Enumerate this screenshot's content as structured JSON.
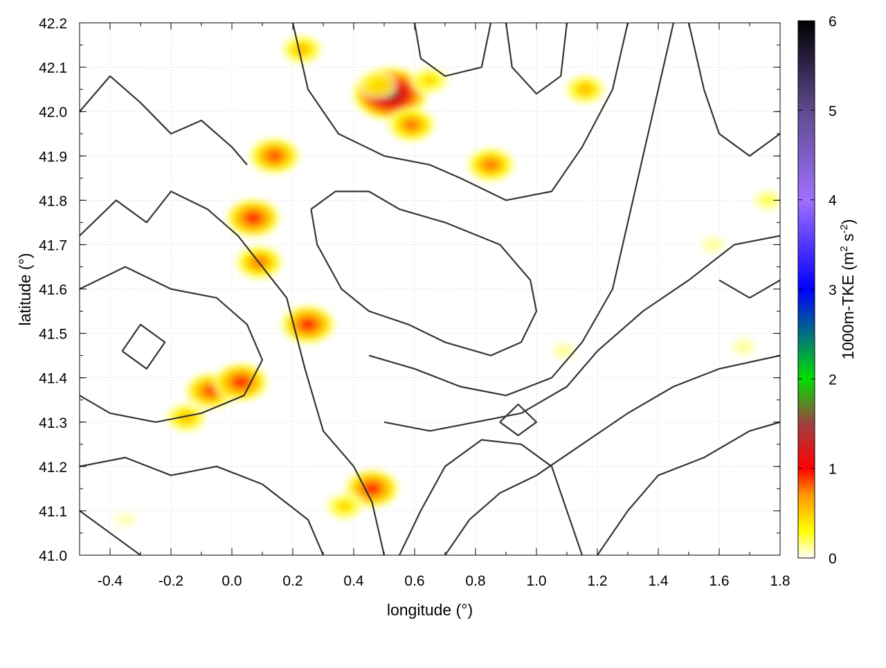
{
  "chart_data": {
    "type": "heatmap",
    "title": "",
    "xlabel": "longitude (°)",
    "ylabel": "latitude (°)",
    "xlim": [
      -0.5,
      1.8
    ],
    "ylim": [
      41.0,
      42.2
    ],
    "x_ticks": [
      {
        "value": -0.4,
        "label": "-0.4"
      },
      {
        "value": -0.2,
        "label": "-0.2"
      },
      {
        "value": 0.0,
        "label": "0.0"
      },
      {
        "value": 0.2,
        "label": "0.2"
      },
      {
        "value": 0.4,
        "label": "0.4"
      },
      {
        "value": 0.6,
        "label": "0.6"
      },
      {
        "value": 0.8,
        "label": "0.8"
      },
      {
        "value": 1.0,
        "label": "1.0"
      },
      {
        "value": 1.2,
        "label": "1.2"
      },
      {
        "value": 1.4,
        "label": "1.4"
      },
      {
        "value": 1.6,
        "label": "1.6"
      },
      {
        "value": 1.8,
        "label": "1.8"
      }
    ],
    "y_ticks": [
      {
        "value": 41.0,
        "label": "41.0"
      },
      {
        "value": 41.1,
        "label": "41.1"
      },
      {
        "value": 41.2,
        "label": "41.2"
      },
      {
        "value": 41.3,
        "label": "41.3"
      },
      {
        "value": 41.4,
        "label": "41.4"
      },
      {
        "value": 41.5,
        "label": "41.5"
      },
      {
        "value": 41.6,
        "label": "41.6"
      },
      {
        "value": 41.7,
        "label": "41.7"
      },
      {
        "value": 41.8,
        "label": "41.8"
      },
      {
        "value": 41.9,
        "label": "41.9"
      },
      {
        "value": 42.0,
        "label": "42.0"
      },
      {
        "value": 42.1,
        "label": "42.1"
      },
      {
        "value": 42.2,
        "label": "42.2"
      }
    ],
    "grid": true,
    "colorbar": {
      "label_main": "1000m-TKE (m",
      "label_sup1": "2",
      "label_mid": " s",
      "label_sup2": "-2",
      "label_end": ")",
      "range": [
        0,
        6
      ],
      "ticks": [
        {
          "value": 0,
          "label": "0"
        },
        {
          "value": 1,
          "label": "1"
        },
        {
          "value": 2,
          "label": "2"
        },
        {
          "value": 3,
          "label": "3"
        },
        {
          "value": 4,
          "label": "4"
        },
        {
          "value": 5,
          "label": "5"
        },
        {
          "value": 6,
          "label": "6"
        }
      ],
      "stops": [
        {
          "value": 0.0,
          "color": "#ffffff"
        },
        {
          "value": 0.3,
          "color": "#ffff00"
        },
        {
          "value": 0.7,
          "color": "#ff9900"
        },
        {
          "value": 1.0,
          "color": "#ff0000"
        },
        {
          "value": 1.5,
          "color": "#a04040"
        },
        {
          "value": 2.0,
          "color": "#00e000"
        },
        {
          "value": 3.0,
          "color": "#0000ff"
        },
        {
          "value": 4.0,
          "color": "#a070ff"
        },
        {
          "value": 5.0,
          "color": "#604a90"
        },
        {
          "value": 6.0,
          "color": "#000000"
        }
      ]
    },
    "tke_hotspots": [
      {
        "lon": 0.14,
        "lat": 41.9,
        "peak": 0.9
      },
      {
        "lon": 0.07,
        "lat": 41.76,
        "peak": 1.0
      },
      {
        "lon": 0.09,
        "lat": 41.66,
        "peak": 0.8
      },
      {
        "lon": 0.25,
        "lat": 41.52,
        "peak": 1.0
      },
      {
        "lon": -0.07,
        "lat": 41.37,
        "peak": 0.9
      },
      {
        "lon": 0.03,
        "lat": 41.39,
        "peak": 1.0
      },
      {
        "lon": -0.15,
        "lat": 41.31,
        "peak": 0.6
      },
      {
        "lon": 0.46,
        "lat": 41.15,
        "peak": 1.0
      },
      {
        "lon": 0.37,
        "lat": 41.11,
        "peak": 0.5
      },
      {
        "lon": 0.52,
        "lat": 42.04,
        "peak": 1.6
      },
      {
        "lon": 0.59,
        "lat": 41.97,
        "peak": 0.8
      },
      {
        "lon": 0.23,
        "lat": 42.14,
        "peak": 0.6
      },
      {
        "lon": 0.48,
        "lat": 42.06,
        "peak": 0.5
      },
      {
        "lon": 1.16,
        "lat": 42.05,
        "peak": 0.6
      },
      {
        "lon": 0.85,
        "lat": 41.88,
        "peak": 0.8
      },
      {
        "lon": 0.65,
        "lat": 42.07,
        "peak": 0.5
      },
      {
        "lon": 1.09,
        "lat": 41.46,
        "peak": 0.2
      },
      {
        "lon": 1.68,
        "lat": 41.47,
        "peak": 0.2
      },
      {
        "lon": 1.58,
        "lat": 41.7,
        "peak": 0.2
      },
      {
        "lon": 1.76,
        "lat": 41.8,
        "peak": 0.3
      },
      {
        "lon": -0.35,
        "lat": 41.08,
        "peak": 0.15
      }
    ],
    "topography_contours": [
      [
        [
          -0.5,
          42.0
        ],
        [
          -0.4,
          42.08
        ],
        [
          -0.3,
          42.02
        ],
        [
          -0.2,
          41.95
        ],
        [
          -0.1,
          41.98
        ],
        [
          0.0,
          41.92
        ],
        [
          0.05,
          41.88
        ]
      ],
      [
        [
          -0.5,
          41.72
        ],
        [
          -0.38,
          41.8
        ],
        [
          -0.28,
          41.75
        ],
        [
          -0.2,
          41.82
        ],
        [
          -0.08,
          41.78
        ],
        [
          0.02,
          41.72
        ],
        [
          0.1,
          41.65
        ],
        [
          0.18,
          41.58
        ],
        [
          0.24,
          41.42
        ],
        [
          0.3,
          41.28
        ],
        [
          0.4,
          41.2
        ],
        [
          0.46,
          41.12
        ],
        [
          0.5,
          41.0
        ]
      ],
      [
        [
          -0.5,
          41.6
        ],
        [
          -0.35,
          41.65
        ],
        [
          -0.2,
          41.6
        ],
        [
          -0.05,
          41.58
        ],
        [
          0.05,
          41.52
        ],
        [
          0.1,
          41.44
        ],
        [
          0.04,
          41.36
        ],
        [
          -0.1,
          41.32
        ],
        [
          -0.25,
          41.3
        ],
        [
          -0.4,
          41.32
        ],
        [
          -0.5,
          41.36
        ]
      ],
      [
        [
          -0.5,
          41.2
        ],
        [
          -0.35,
          41.22
        ],
        [
          -0.2,
          41.18
        ],
        [
          -0.05,
          41.2
        ],
        [
          0.1,
          41.16
        ],
        [
          0.25,
          41.08
        ],
        [
          0.3,
          41.0
        ]
      ],
      [
        [
          -0.5,
          41.1
        ],
        [
          -0.4,
          41.05
        ],
        [
          -0.3,
          41.0
        ]
      ],
      [
        [
          0.2,
          42.2
        ],
        [
          0.25,
          42.05
        ],
        [
          0.35,
          41.95
        ],
        [
          0.5,
          41.9
        ],
        [
          0.65,
          41.88
        ],
        [
          0.75,
          41.85
        ],
        [
          0.9,
          41.8
        ],
        [
          1.05,
          41.82
        ],
        [
          1.15,
          41.92
        ],
        [
          1.25,
          42.05
        ],
        [
          1.3,
          42.2
        ]
      ],
      [
        [
          0.26,
          41.78
        ],
        [
          0.34,
          41.82
        ],
        [
          0.45,
          41.82
        ],
        [
          0.55,
          41.78
        ],
        [
          0.7,
          41.75
        ],
        [
          0.88,
          41.7
        ],
        [
          0.98,
          41.62
        ],
        [
          1.0,
          41.55
        ],
        [
          0.95,
          41.48
        ],
        [
          0.85,
          41.45
        ],
        [
          0.7,
          41.48
        ],
        [
          0.58,
          41.52
        ],
        [
          0.45,
          41.55
        ],
        [
          0.36,
          41.6
        ],
        [
          0.28,
          41.7
        ],
        [
          0.26,
          41.78
        ]
      ],
      [
        [
          0.45,
          41.45
        ],
        [
          0.6,
          41.42
        ],
        [
          0.75,
          41.38
        ],
        [
          0.9,
          41.36
        ],
        [
          1.05,
          41.4
        ],
        [
          1.15,
          41.48
        ],
        [
          1.25,
          41.6
        ],
        [
          1.3,
          41.75
        ],
        [
          1.35,
          41.9
        ],
        [
          1.4,
          42.05
        ],
        [
          1.45,
          42.2
        ]
      ],
      [
        [
          0.5,
          41.3
        ],
        [
          0.65,
          41.28
        ],
        [
          0.8,
          41.3
        ],
        [
          0.95,
          41.32
        ],
        [
          1.1,
          41.38
        ],
        [
          1.2,
          41.46
        ],
        [
          1.35,
          41.55
        ],
        [
          1.5,
          41.62
        ],
        [
          1.65,
          41.7
        ],
        [
          1.8,
          41.72
        ]
      ],
      [
        [
          0.55,
          41.0
        ],
        [
          0.62,
          41.1
        ],
        [
          0.7,
          41.2
        ],
        [
          0.82,
          41.26
        ],
        [
          0.95,
          41.25
        ],
        [
          1.05,
          41.2
        ],
        [
          1.1,
          41.1
        ],
        [
          1.15,
          41.0
        ]
      ],
      [
        [
          0.7,
          41.0
        ],
        [
          0.78,
          41.08
        ],
        [
          0.88,
          41.14
        ],
        [
          1.0,
          41.18
        ],
        [
          1.15,
          41.25
        ],
        [
          1.3,
          41.32
        ],
        [
          1.45,
          41.38
        ],
        [
          1.6,
          41.42
        ],
        [
          1.8,
          41.45
        ]
      ],
      [
        [
          1.2,
          41.0
        ],
        [
          1.3,
          41.1
        ],
        [
          1.4,
          41.18
        ],
        [
          1.55,
          41.22
        ],
        [
          1.7,
          41.28
        ],
        [
          1.8,
          41.3
        ]
      ],
      [
        [
          1.5,
          42.2
        ],
        [
          1.55,
          42.05
        ],
        [
          1.6,
          41.95
        ],
        [
          1.7,
          41.9
        ],
        [
          1.8,
          41.95
        ]
      ],
      [
        [
          0.6,
          42.2
        ],
        [
          0.62,
          42.12
        ],
        [
          0.7,
          42.08
        ],
        [
          0.82,
          42.1
        ],
        [
          0.85,
          42.2
        ]
      ],
      [
        [
          0.9,
          42.2
        ],
        [
          0.92,
          42.1
        ],
        [
          1.0,
          42.04
        ],
        [
          1.08,
          42.08
        ],
        [
          1.1,
          42.2
        ]
      ],
      [
        [
          1.6,
          41.62
        ],
        [
          1.7,
          41.58
        ],
        [
          1.8,
          41.62
        ]
      ],
      [
        [
          0.88,
          41.3
        ],
        [
          0.94,
          41.34
        ],
        [
          1.0,
          41.3
        ],
        [
          0.94,
          41.27
        ],
        [
          0.88,
          41.3
        ]
      ],
      [
        [
          -0.36,
          41.46
        ],
        [
          -0.3,
          41.52
        ],
        [
          -0.22,
          41.48
        ],
        [
          -0.28,
          41.42
        ],
        [
          -0.36,
          41.46
        ]
      ]
    ]
  }
}
